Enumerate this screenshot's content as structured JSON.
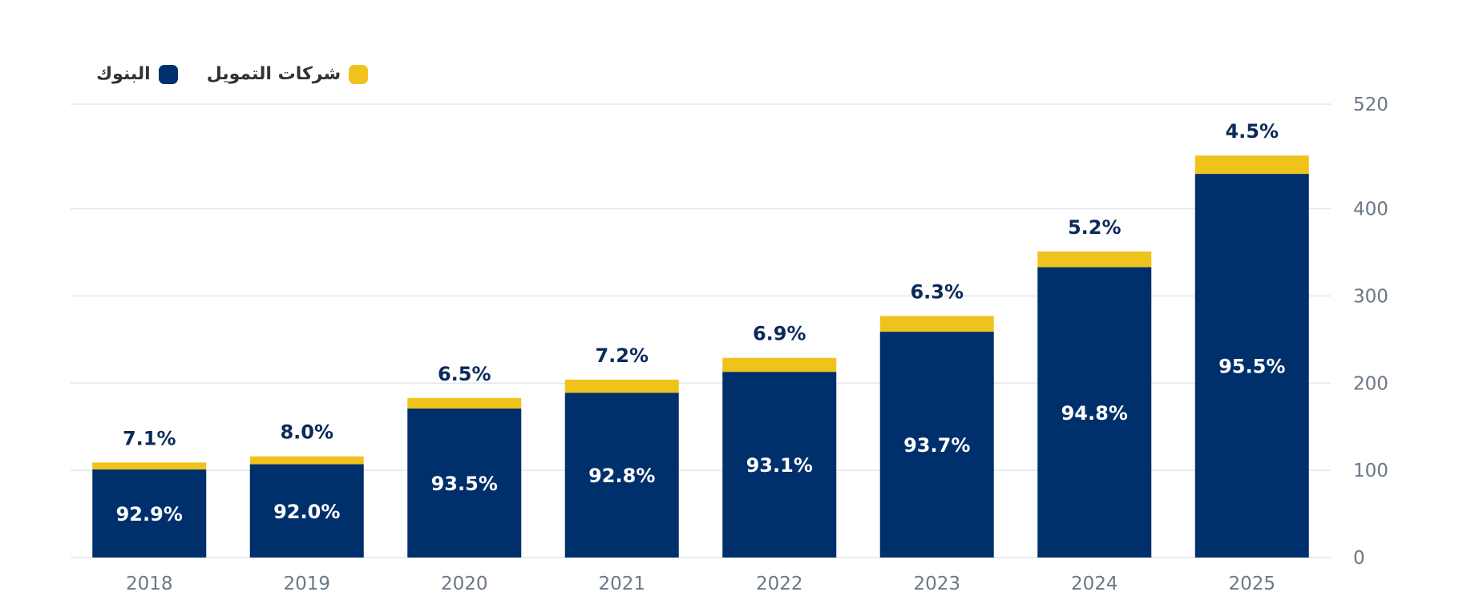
{
  "colors": {
    "banks": "#00306B",
    "finance": "#F0C31C",
    "grid": "#E3E6EA",
    "axis_text": "#6B7785",
    "label_dark": "#0B2A5B",
    "label_light": "#FFFFFF",
    "legend_text": "#333333"
  },
  "legend": [
    {
      "label": "البنوك",
      "color": "#00306B"
    },
    {
      "label": "شركات التمويل",
      "color": "#F0C31C"
    }
  ],
  "chart_data": {
    "type": "bar",
    "stacked": true,
    "categories": [
      "2018",
      "2019",
      "2020",
      "2021",
      "2022",
      "2023",
      "2024",
      "2025"
    ],
    "series": [
      {
        "name": "البنوك",
        "values": [
          101,
          107,
          171,
          189,
          213,
          259,
          333,
          440
        ],
        "labels": [
          "92.9%",
          "92.0%",
          "93.5%",
          "92.8%",
          "93.1%",
          "93.7%",
          "94.8%",
          "95.5%"
        ]
      },
      {
        "name": "شركات التمويل",
        "values": [
          8,
          9,
          12,
          15,
          16,
          18,
          18,
          21
        ],
        "labels": [
          "7.1%",
          "8.0%",
          "6.5%",
          "7.2%",
          "6.9%",
          "6.3%",
          "5.2%",
          "4.5%"
        ]
      }
    ],
    "yticks": [
      0,
      100,
      200,
      300,
      400,
      520
    ],
    "ylim": [
      0,
      520
    ],
    "y_axis_position": "right",
    "grid": true,
    "legend_position": "top-left"
  }
}
